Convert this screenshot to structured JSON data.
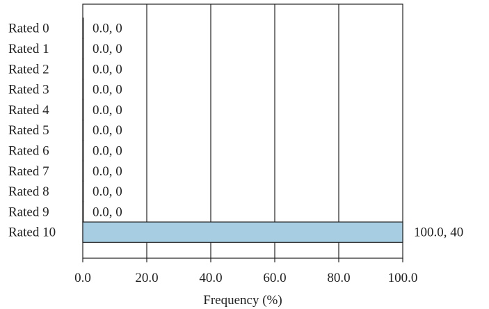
{
  "chart_data": {
    "type": "bar",
    "orientation": "horizontal",
    "categories": [
      "Rated 0",
      "Rated 1",
      "Rated 2",
      "Rated 3",
      "Rated 4",
      "Rated 5",
      "Rated 6",
      "Rated 7",
      "Rated 8",
      "Rated 9",
      "Rated 10"
    ],
    "values": [
      0.0,
      0.0,
      0.0,
      0.0,
      0.0,
      0.0,
      0.0,
      0.0,
      0.0,
      0.0,
      100.0
    ],
    "counts": [
      0,
      0,
      0,
      0,
      0,
      0,
      0,
      0,
      0,
      0,
      40
    ],
    "data_labels": [
      "0.0, 0",
      "0.0, 0",
      "0.0, 0",
      "0.0, 0",
      "0.0, 0",
      "0.0, 0",
      "0.0, 0",
      "0.0, 0",
      "0.0, 0",
      "0.0, 0",
      "100.0, 40"
    ],
    "xlabel": "Frequency (%)",
    "ylabel": "",
    "xlim": [
      0,
      100
    ],
    "x_ticks": [
      0,
      20,
      40,
      60,
      80,
      100
    ],
    "x_tick_labels": [
      "0.0",
      "20.0",
      "40.0",
      "60.0",
      "80.0",
      "100.0"
    ],
    "grid": "vertical",
    "bar_color": "#a6cde2"
  }
}
